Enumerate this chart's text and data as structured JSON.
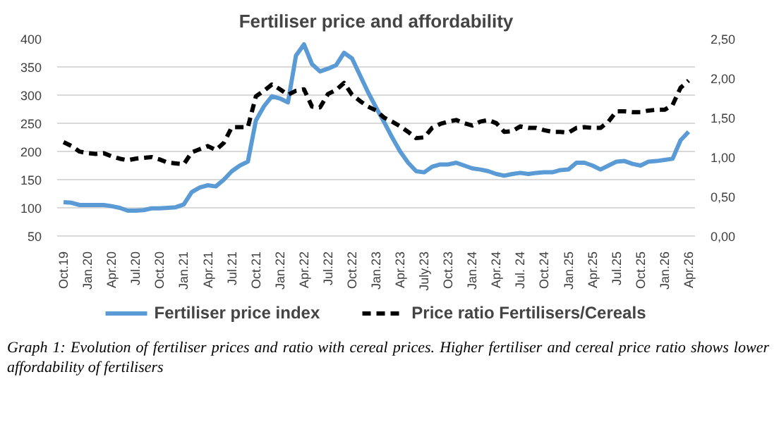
{
  "chart_data": {
    "type": "line",
    "title": "Fertiliser price and affordability",
    "categories": [
      "Oct.19",
      null,
      null,
      "Jan.20",
      null,
      null,
      "Apr.20",
      null,
      null,
      "Jul.20",
      null,
      null,
      "Oct.20",
      null,
      null,
      "Jan.21",
      null,
      null,
      "Apr.21",
      null,
      null,
      "Jul.21",
      null,
      null,
      "Oct.21",
      null,
      null,
      "Jan.22",
      null,
      null,
      "Apr.22",
      null,
      null,
      "Jul.22",
      null,
      null,
      "Oct.22",
      null,
      null,
      "Jan.23",
      null,
      null,
      "Apr.23",
      null,
      null,
      "July.23",
      null,
      null,
      "Oct.23",
      null,
      null,
      "Jan.24",
      null,
      null,
      "Apr.24",
      null,
      null,
      "Jul. 24",
      null,
      null,
      "Oct.24",
      null,
      null,
      "Jan.25",
      null,
      null,
      "Apr.25",
      null,
      null,
      "Jul.25",
      null,
      null,
      "Oct.25",
      null,
      null,
      "Jan.26",
      null,
      null,
      "Apr.26"
    ],
    "series": [
      {
        "name": "Fertiliser price index",
        "color": "#5b9bd5",
        "line_style": "solid",
        "values": [
          110,
          109,
          105,
          105,
          105,
          105,
          103,
          100,
          95,
          95,
          96,
          99,
          99,
          100,
          101,
          106,
          128,
          136,
          140,
          138,
          150,
          165,
          175,
          182,
          255,
          280,
          298,
          294,
          287,
          370,
          390,
          355,
          342,
          347,
          353,
          375,
          365,
          335,
          305,
          278,
          252,
          225,
          200,
          180,
          165,
          163,
          173,
          177,
          177,
          180,
          175,
          170,
          168,
          165,
          160,
          157,
          160,
          162,
          160,
          162,
          163,
          163,
          167,
          168,
          180,
          180,
          175,
          168,
          175,
          182,
          183,
          178,
          175,
          182,
          183,
          185,
          187,
          220,
          235
        ]
      },
      {
        "name": "Price ratio Fertilisers/Cereals",
        "color": "#000000",
        "line_style": "dashed",
        "axis": "y2",
        "values": [
          1.19,
          1.14,
          1.07,
          1.05,
          1.04,
          1.05,
          1.01,
          0.98,
          0.96,
          0.98,
          0.99,
          1.0,
          0.97,
          0.93,
          0.92,
          0.91,
          1.06,
          1.1,
          1.14,
          1.09,
          1.18,
          1.38,
          1.38,
          1.38,
          1.77,
          1.84,
          1.92,
          1.86,
          1.79,
          1.84,
          1.86,
          1.64,
          1.63,
          1.8,
          1.85,
          1.94,
          1.79,
          1.71,
          1.64,
          1.59,
          1.5,
          1.45,
          1.39,
          1.32,
          1.24,
          1.25,
          1.37,
          1.42,
          1.45,
          1.47,
          1.43,
          1.4,
          1.45,
          1.47,
          1.43,
          1.32,
          1.33,
          1.39,
          1.37,
          1.37,
          1.34,
          1.32,
          1.32,
          1.31,
          1.37,
          1.38,
          1.37,
          1.37,
          1.45,
          1.58,
          1.58,
          1.57,
          1.57,
          1.59,
          1.6,
          1.6,
          1.66,
          1.88,
          1.97
        ]
      }
    ],
    "ylim": [
      50,
      400
    ],
    "yticks": [
      50,
      100,
      150,
      200,
      250,
      300,
      350,
      400
    ],
    "y2lim": [
      0,
      2.5
    ],
    "y2ticks": [
      {
        "value": 0,
        "label": "0,00"
      },
      {
        "value": 0.5,
        "label": "0,50"
      },
      {
        "value": 1,
        "label": "1,00"
      },
      {
        "value": 1.5,
        "label": "1,50"
      },
      {
        "value": 2,
        "label": "2,00"
      },
      {
        "value": 2.5,
        "label": "2,50"
      }
    ],
    "grid": "y",
    "legend": "bottom",
    "marker": "none",
    "annotations": [
      "Graph 1: Evolution of fertiliser prices and ratio with cereal prices. Higher fertiliser and cereal price ratio shows lower affordability of fertilisers"
    ]
  }
}
